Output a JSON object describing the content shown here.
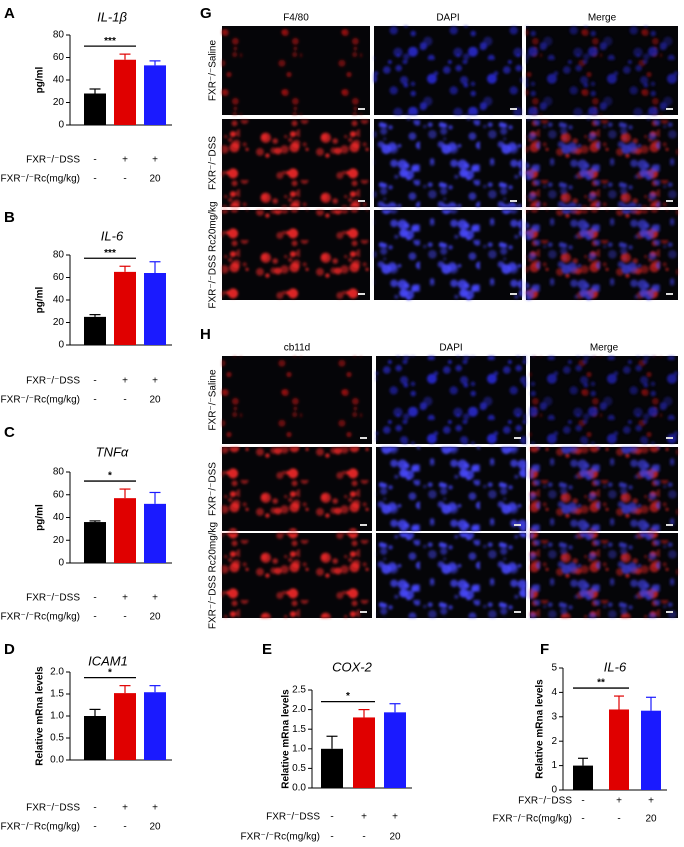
{
  "chart_data": [
    {
      "type": "bar",
      "panel": "A",
      "title": "IL-1β",
      "ylabel": "pg/ml",
      "categories": [
        null,
        null,
        null
      ],
      "values": [
        28,
        58,
        53
      ],
      "errors": [
        4,
        5,
        4
      ],
      "colors": [
        "#000000",
        "#e00000",
        "#1a1aff"
      ],
      "ylim": [
        0,
        80
      ],
      "yticks": [
        0,
        20,
        40,
        60,
        80
      ],
      "significance": [
        {
          "label": "***",
          "from": 0,
          "to": 1
        }
      ],
      "treatments": [
        {
          "label": "FXR⁻/⁻DSS",
          "values": [
            "-",
            "+",
            "+"
          ]
        },
        {
          "label": "FXR⁻/⁻Rc(mg/kg)",
          "values": [
            "-",
            "-",
            "20"
          ]
        }
      ]
    },
    {
      "type": "bar",
      "panel": "B",
      "title": "IL-6",
      "ylabel": "pg/ml",
      "categories": [
        null,
        null,
        null
      ],
      "values": [
        25,
        65,
        64
      ],
      "errors": [
        2,
        5,
        10
      ],
      "colors": [
        "#000000",
        "#e00000",
        "#1a1aff"
      ],
      "ylim": [
        0,
        80
      ],
      "yticks": [
        0,
        20,
        40,
        60,
        80
      ],
      "significance": [
        {
          "label": "***",
          "from": 0,
          "to": 1
        }
      ],
      "treatments": [
        {
          "label": "FXR⁻/⁻DSS",
          "values": [
            "-",
            "+",
            "+"
          ]
        },
        {
          "label": "FXR⁻/⁻Rc(mg/kg)",
          "values": [
            "-",
            "-",
            "20"
          ]
        }
      ]
    },
    {
      "type": "bar",
      "panel": "C",
      "title": "TNFα",
      "ylabel": "pg/ml",
      "categories": [
        null,
        null,
        null
      ],
      "values": [
        36,
        57,
        52
      ],
      "errors": [
        1,
        8,
        10
      ],
      "colors": [
        "#000000",
        "#e00000",
        "#1a1aff"
      ],
      "ylim": [
        0,
        80
      ],
      "yticks": [
        0,
        20,
        40,
        60,
        80
      ],
      "significance": [
        {
          "label": "*",
          "from": 0,
          "to": 1
        }
      ],
      "treatments": [
        {
          "label": "FXR⁻/⁻DSS",
          "values": [
            "-",
            "+",
            "+"
          ]
        },
        {
          "label": "FXR⁻/⁻Rc(mg/kg)",
          "values": [
            "-",
            "-",
            "20"
          ]
        }
      ]
    },
    {
      "type": "bar",
      "panel": "D",
      "title": "ICAM1",
      "ylabel": "Relative mRna levels",
      "categories": [
        null,
        null,
        null
      ],
      "values": [
        1.0,
        1.52,
        1.54
      ],
      "errors": [
        0.15,
        0.17,
        0.15
      ],
      "colors": [
        "#000000",
        "#e00000",
        "#1a1aff"
      ],
      "ylim": [
        0,
        2
      ],
      "yticks": [
        {
          "value": 0,
          "label": "0.0"
        },
        0.5,
        {
          "value": 1,
          "label": "1.0"
        },
        1.5,
        {
          "value": 2,
          "label": "2.0"
        }
      ],
      "significance": [
        {
          "label": "*",
          "from": 0,
          "to": 1
        }
      ],
      "treatments": [
        {
          "label": "FXR⁻/⁻DSS",
          "values": [
            "-",
            "+",
            "+"
          ]
        },
        {
          "label": "FXR⁻/⁻Rc(mg/kg)",
          "values": [
            "-",
            "-",
            "20"
          ]
        }
      ]
    },
    {
      "type": "bar",
      "panel": "E",
      "title": "COX-2",
      "ylabel": "Relative mRna levels",
      "categories": [
        null,
        null,
        null
      ],
      "values": [
        1.0,
        1.8,
        1.93
      ],
      "errors": [
        0.32,
        0.2,
        0.22
      ],
      "colors": [
        "#000000",
        "#e00000",
        "#1a1aff"
      ],
      "ylim": [
        0,
        2.5
      ],
      "yticks": [
        {
          "value": 0,
          "label": "0.0"
        },
        0.5,
        {
          "value": 1,
          "label": "1.0"
        },
        1.5,
        {
          "value": 2,
          "label": "2.0"
        },
        2.5
      ],
      "significance": [
        {
          "label": "*",
          "from": 0,
          "to": 1
        }
      ],
      "treatments": [
        {
          "label": "FXR⁻/⁻DSS",
          "values": [
            "-",
            "+",
            "+"
          ]
        },
        {
          "label": "FXR⁻/⁻Rc(mg/kg)",
          "values": [
            "-",
            "-",
            "20"
          ]
        }
      ]
    },
    {
      "type": "bar",
      "panel": "F",
      "title": "IL-6",
      "ylabel": "Relative mRna levels",
      "categories": [
        null,
        null,
        null
      ],
      "values": [
        1.0,
        3.3,
        3.25
      ],
      "errors": [
        0.3,
        0.55,
        0.55
      ],
      "colors": [
        "#000000",
        "#e00000",
        "#1a1aff"
      ],
      "ylim": [
        0,
        5
      ],
      "yticks": [
        0,
        1,
        2,
        3,
        4,
        5
      ],
      "significance": [
        {
          "label": "**",
          "from": 0,
          "to": 1
        }
      ],
      "treatments": [
        {
          "label": "FXR⁻/⁻DSS",
          "values": [
            "-",
            "+",
            "+"
          ]
        },
        {
          "label": "FXR⁻/⁻Rc(mg/kg)",
          "values": [
            "-",
            "-",
            "20"
          ]
        }
      ]
    }
  ],
  "image_panels": [
    {
      "panel": "G",
      "columns": [
        "F4/80",
        "DAPI",
        "Merge"
      ],
      "rows": [
        "FXR⁻/⁻Saline",
        "FXR⁻/⁻DSS",
        "FXR⁻/⁻DSS Rc20mg/kg"
      ]
    },
    {
      "panel": "H",
      "columns": [
        "cb11d",
        "DAPI",
        "Merge"
      ],
      "rows": [
        "FXR⁻/⁻Saline",
        "FXR⁻/⁻DSS",
        "FXR⁻/⁻DSS Rc20mg/kg"
      ]
    }
  ]
}
